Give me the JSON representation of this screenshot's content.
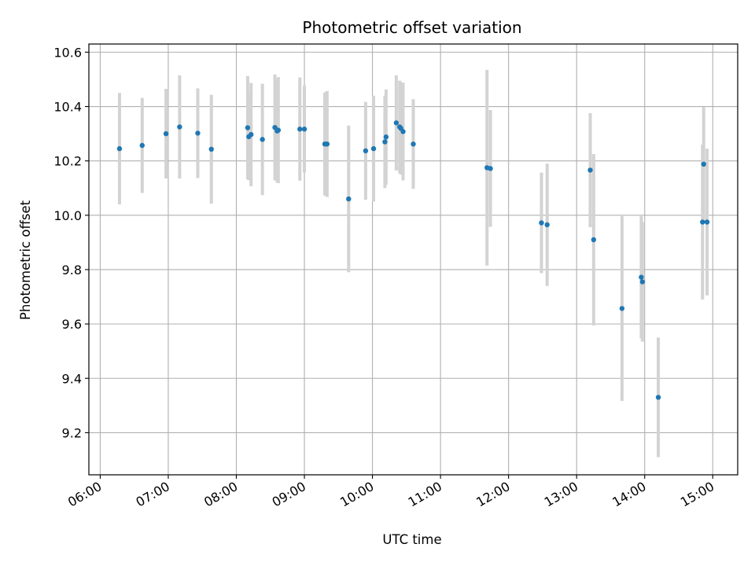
{
  "chart_data": {
    "type": "scatter",
    "title": "Photometric offset variation",
    "xlabel": "UTC time",
    "ylabel": "Photometric offset",
    "x_ticks": [
      "06:00",
      "07:00",
      "08:00",
      "09:00",
      "10:00",
      "11:00",
      "12:00",
      "13:00",
      "14:00",
      "15:00"
    ],
    "y_ticks": [
      "9.2",
      "9.4",
      "9.6",
      "9.8",
      "10.0",
      "10.2",
      "10.4",
      "10.6"
    ],
    "xlim": [
      "05:50",
      "15:22"
    ],
    "ylim": [
      9.045,
      10.63
    ],
    "grid": true,
    "colors": {
      "point": "#1f77b4",
      "errorbar": "#d3d3d3",
      "grid": "#b0b0b0"
    },
    "points": [
      {
        "x": "06:17",
        "y": 10.245,
        "err": 0.205
      },
      {
        "x": "06:37",
        "y": 10.257,
        "err": 0.175
      },
      {
        "x": "06:58",
        "y": 10.3,
        "err": 0.165
      },
      {
        "x": "07:10",
        "y": 10.325,
        "err": 0.19
      },
      {
        "x": "07:26",
        "y": 10.302,
        "err": 0.165
      },
      {
        "x": "07:38",
        "y": 10.243,
        "err": 0.2
      },
      {
        "x": "08:10",
        "y": 10.322,
        "err": 0.19
      },
      {
        "x": "08:11",
        "y": 10.289,
        "err": 0.16
      },
      {
        "x": "08:13",
        "y": 10.297,
        "err": 0.19
      },
      {
        "x": "08:23",
        "y": 10.279,
        "err": 0.205
      },
      {
        "x": "08:34",
        "y": 10.323,
        "err": 0.195
      },
      {
        "x": "08:36",
        "y": 10.31,
        "err": 0.19
      },
      {
        "x": "08:37",
        "y": 10.313,
        "err": 0.195
      },
      {
        "x": "08:56",
        "y": 10.317,
        "err": 0.19
      },
      {
        "x": "09:00",
        "y": 10.317,
        "err": 0.16
      },
      {
        "x": "09:18",
        "y": 10.262,
        "err": 0.19
      },
      {
        "x": "09:20",
        "y": 10.262,
        "err": 0.195
      },
      {
        "x": "09:39",
        "y": 10.06,
        "err": 0.27
      },
      {
        "x": "09:54",
        "y": 10.237,
        "err": 0.18
      },
      {
        "x": "10:01",
        "y": 10.245,
        "err": 0.195
      },
      {
        "x": "10:11",
        "y": 10.27,
        "err": 0.17
      },
      {
        "x": "10:12",
        "y": 10.288,
        "err": 0.175
      },
      {
        "x": "10:21",
        "y": 10.34,
        "err": 0.175
      },
      {
        "x": "10:24",
        "y": 10.325,
        "err": 0.17
      },
      {
        "x": "10:25",
        "y": 10.32,
        "err": 0.17
      },
      {
        "x": "10:27",
        "y": 10.308,
        "err": 0.18
      },
      {
        "x": "10:36",
        "y": 10.262,
        "err": 0.165
      },
      {
        "x": "11:41",
        "y": 10.175,
        "err": 0.36
      },
      {
        "x": "11:44",
        "y": 10.172,
        "err": 0.215
      },
      {
        "x": "12:29",
        "y": 9.972,
        "err": 0.185
      },
      {
        "x": "12:34",
        "y": 9.965,
        "err": 0.225
      },
      {
        "x": "13:12",
        "y": 10.166,
        "err": 0.21
      },
      {
        "x": "13:15",
        "y": 9.91,
        "err": 0.315
      },
      {
        "x": "13:40",
        "y": 9.657,
        "err": 0.34
      },
      {
        "x": "13:57",
        "y": 9.772,
        "err": 0.225
      },
      {
        "x": "13:58",
        "y": 9.755,
        "err": 0.22
      },
      {
        "x": "14:12",
        "y": 9.33,
        "err": 0.22
      },
      {
        "x": "14:51",
        "y": 9.975,
        "err": 0.285
      },
      {
        "x": "14:52",
        "y": 10.188,
        "err": 0.21
      },
      {
        "x": "14:55",
        "y": 9.975,
        "err": 0.27
      }
    ]
  }
}
